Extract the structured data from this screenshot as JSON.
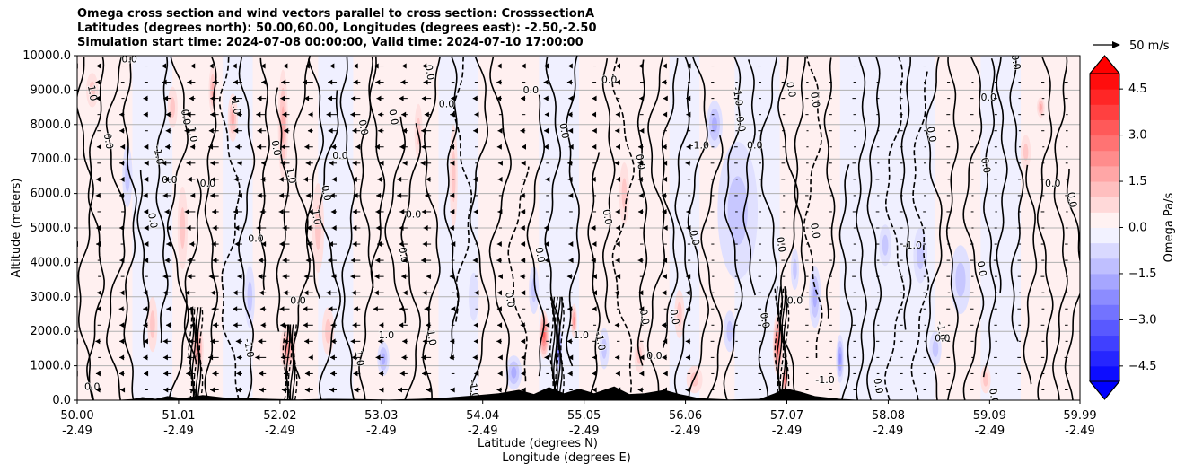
{
  "chart_data": {
    "type": "heatmap",
    "title_lines": [
      "Omega cross section and wind vectors parallel to cross section: CrosssectionA",
      "Latitudes (degrees north): 50.00,60.00, Longitudes (degrees east): -2.50,-2.50",
      "Simulation start time: 2024-07-08 00:00:00, Valid time: 2024-07-10 17:00:00"
    ],
    "ylabel": "Altitude (meters)",
    "xlabel_lines": [
      "Latitude (degrees N)",
      "Longitude (degrees E)"
    ],
    "xlim": [
      50.0,
      59.99
    ],
    "ylim": [
      0,
      10000
    ],
    "grid": "horizontal",
    "x_ticks": [
      {
        "lat": "50.00",
        "lon": "-2.49",
        "v": 50.0
      },
      {
        "lat": "51.01",
        "lon": "-2.49",
        "v": 51.01
      },
      {
        "lat": "52.02",
        "lon": "-2.49",
        "v": 52.02
      },
      {
        "lat": "53.03",
        "lon": "-2.49",
        "v": 53.03
      },
      {
        "lat": "54.04",
        "lon": "-2.49",
        "v": 54.04
      },
      {
        "lat": "55.05",
        "lon": "-2.49",
        "v": 55.05
      },
      {
        "lat": "56.06",
        "lon": "-2.49",
        "v": 56.06
      },
      {
        "lat": "57.07",
        "lon": "-2.49",
        "v": 57.07
      },
      {
        "lat": "58.08",
        "lon": "-2.49",
        "v": 58.08
      },
      {
        "lat": "59.09",
        "lon": "-2.49",
        "v": 59.09
      },
      {
        "lat": "59.99",
        "lon": "-2.49",
        "v": 59.99
      }
    ],
    "y_ticks": [
      {
        "label": "0.0",
        "v": 0
      },
      {
        "label": "1000.0",
        "v": 1000
      },
      {
        "label": "2000.0",
        "v": 2000
      },
      {
        "label": "3000.0",
        "v": 3000
      },
      {
        "label": "4000.0",
        "v": 4000
      },
      {
        "label": "5000.0",
        "v": 5000
      },
      {
        "label": "6000.0",
        "v": 6000
      },
      {
        "label": "7000.0",
        "v": 7000
      },
      {
        "label": "8000.0",
        "v": 8000
      },
      {
        "label": "9000.0",
        "v": 9000
      },
      {
        "label": "10000.0",
        "v": 10000
      }
    ],
    "colorbar": {
      "label": "Omega Pa/s",
      "range": [
        -5,
        5
      ],
      "levels": 20,
      "extend": "both",
      "ticks": [
        {
          "label": "4.5",
          "v": 4.5
        },
        {
          "label": "3.0",
          "v": 3.0
        },
        {
          "label": "1.5",
          "v": 1.5
        },
        {
          "label": "0.0",
          "v": 0.0
        },
        {
          "label": "−1.5",
          "v": -1.5
        },
        {
          "label": "−3.0",
          "v": -3.0
        },
        {
          "label": "−4.5",
          "v": -4.5
        }
      ]
    },
    "quiver_key": "50 m/s",
    "contour_labels": [
      {
        "t": "0.0",
        "x": 50.15,
        "y": 300
      },
      {
        "t": "1.0",
        "x": 50.12,
        "y": 8900
      },
      {
        "t": "0.0",
        "x": 50.28,
        "y": 7500
      },
      {
        "t": "0.0",
        "x": 50.52,
        "y": 9800
      },
      {
        "t": "0.0",
        "x": 50.72,
        "y": 5200
      },
      {
        "t": "-1.0",
        "x": 50.78,
        "y": 7100
      },
      {
        "t": "0.0",
        "x": 50.92,
        "y": 6300
      },
      {
        "t": "0.0",
        "x": 51.05,
        "y": 8200
      },
      {
        "t": "1.0",
        "x": 51.12,
        "y": 7700
      },
      {
        "t": "0.0",
        "x": 51.3,
        "y": 6200
      },
      {
        "t": "1.0",
        "x": 51.55,
        "y": 8500
      },
      {
        "t": "-1.0",
        "x": 51.68,
        "y": 1500
      },
      {
        "t": "0.0",
        "x": 51.78,
        "y": 4600
      },
      {
        "t": "0.0",
        "x": 51.95,
        "y": 7300
      },
      {
        "t": "1.0",
        "x": 52.1,
        "y": 6500
      },
      {
        "t": "0.0",
        "x": 52.2,
        "y": 2800
      },
      {
        "t": "1.0",
        "x": 52.35,
        "y": 5300
      },
      {
        "t": "0.0",
        "x": 52.45,
        "y": 6000
      },
      {
        "t": "0.0",
        "x": 52.62,
        "y": 7000
      },
      {
        "t": "1.0",
        "x": 52.78,
        "y": 1200
      },
      {
        "t": "0.0",
        "x": 52.82,
        "y": 7900
      },
      {
        "t": "1.0",
        "x": 53.08,
        "y": 1800
      },
      {
        "t": "0.0",
        "x": 53.12,
        "y": 8200
      },
      {
        "t": "0.0",
        "x": 53.22,
        "y": 4200
      },
      {
        "t": "0.0",
        "x": 53.35,
        "y": 5300
      },
      {
        "t": "0.0",
        "x": 53.48,
        "y": 9500
      },
      {
        "t": "1.0",
        "x": 53.5,
        "y": 1800
      },
      {
        "t": "0.0",
        "x": 53.68,
        "y": 8500
      },
      {
        "t": "-1.0",
        "x": 53.92,
        "y": 300
      },
      {
        "t": "0.0",
        "x": 54.28,
        "y": 2900
      },
      {
        "t": "0.0",
        "x": 54.52,
        "y": 8900
      },
      {
        "t": "0.0",
        "x": 54.58,
        "y": 4200
      },
      {
        "t": "0.0",
        "x": 54.82,
        "y": 7800
      },
      {
        "t": "1.0",
        "x": 55.02,
        "y": 1800
      },
      {
        "t": "-1.0",
        "x": 55.18,
        "y": 1700
      },
      {
        "t": "0.0",
        "x": 55.25,
        "y": 5300
      },
      {
        "t": "0.0",
        "x": 55.3,
        "y": 9200
      },
      {
        "t": "0.0",
        "x": 55.58,
        "y": 6900
      },
      {
        "t": "0.0",
        "x": 55.62,
        "y": 2400
      },
      {
        "t": "0.0",
        "x": 55.75,
        "y": 1200
      },
      {
        "t": "0.0",
        "x": 55.92,
        "y": 2400
      },
      {
        "t": "0.0",
        "x": 56.12,
        "y": 4700
      },
      {
        "t": "-1.0",
        "x": 56.2,
        "y": 7300
      },
      {
        "t": "-1.0",
        "x": 56.55,
        "y": 8800
      },
      {
        "t": "0.0",
        "x": 56.58,
        "y": 8000
      },
      {
        "t": "0.0",
        "x": 56.75,
        "y": 7300
      },
      {
        "t": "0.0",
        "x": 56.82,
        "y": 2300
      },
      {
        "t": "0.0",
        "x": 56.98,
        "y": 4500
      },
      {
        "t": "0.0",
        "x": 57.15,
        "y": 2800
      },
      {
        "t": "0.0",
        "x": 57.08,
        "y": 9000
      },
      {
        "t": "0.0",
        "x": 57.32,
        "y": 8700
      },
      {
        "t": "-1.0",
        "x": 57.45,
        "y": 500
      },
      {
        "t": "0.0",
        "x": 57.32,
        "y": 4900
      },
      {
        "t": "0.0",
        "x": 57.95,
        "y": 400
      },
      {
        "t": "-1.0",
        "x": 58.32,
        "y": 4400
      },
      {
        "t": "0.0",
        "x": 58.48,
        "y": 7700
      },
      {
        "t": "-1.0",
        "x": 58.58,
        "y": 2000
      },
      {
        "t": "0.0",
        "x": 58.62,
        "y": 1700
      },
      {
        "t": "0.0",
        "x": 58.98,
        "y": 3800
      },
      {
        "t": "0.0",
        "x": 59.02,
        "y": 6800
      },
      {
        "t": "0.0",
        "x": 59.08,
        "y": 8700
      },
      {
        "t": "0.0",
        "x": 59.1,
        "y": 100
      },
      {
        "t": "0.0",
        "x": 59.32,
        "y": 9800
      },
      {
        "t": "0.0",
        "x": 59.72,
        "y": 6200
      },
      {
        "t": "0.0",
        "x": 59.88,
        "y": 5800
      }
    ]
  }
}
